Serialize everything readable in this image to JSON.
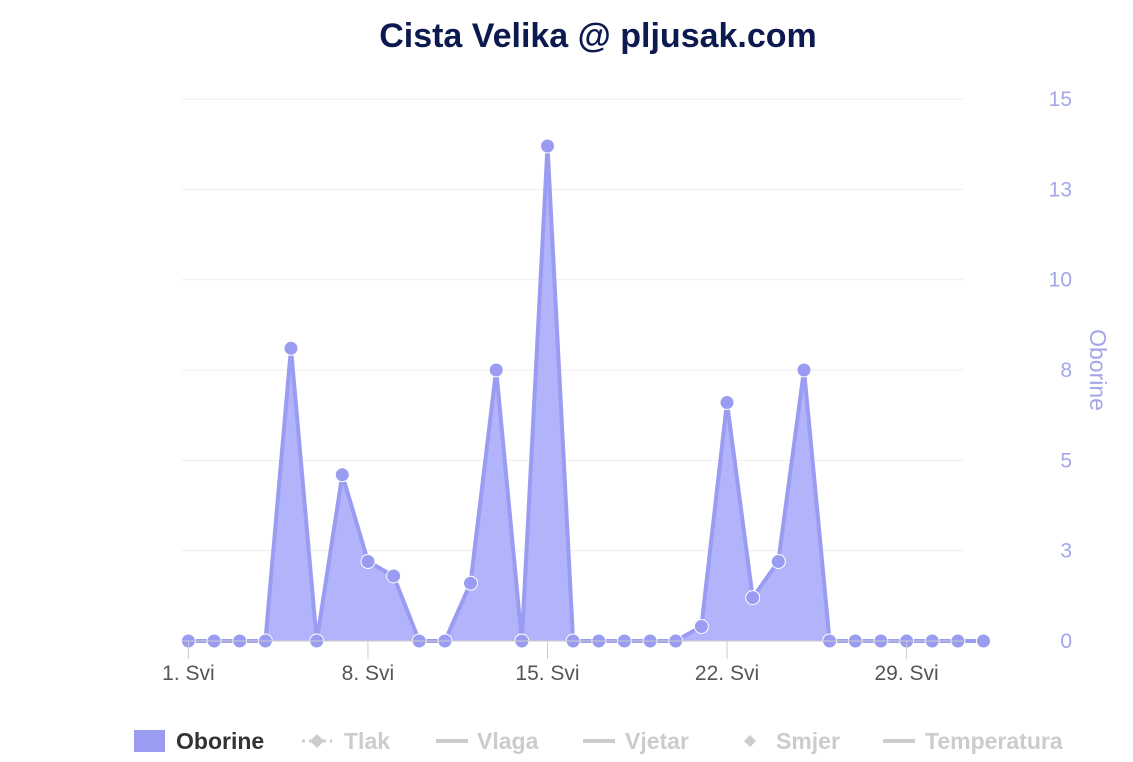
{
  "chart_data": {
    "type": "area",
    "title": "Cista Velika @ pljusak.com",
    "ylabel": "Oborine",
    "ylim": [
      0,
      15
    ],
    "yticks": [
      0,
      2.5,
      5,
      7.5,
      10,
      12.5,
      15
    ],
    "ytick_labels": [
      "0",
      "3",
      "5",
      "8",
      "10",
      "13",
      "15"
    ],
    "xticks": [
      1,
      8,
      15,
      22,
      29
    ],
    "xtick_labels": [
      "1. Svi",
      "8. Svi",
      "15. Svi",
      "22. Svi",
      "29. Svi"
    ],
    "xlim": [
      0.75,
      31.2
    ],
    "grid": true,
    "legend_position": "bottom",
    "colors": {
      "series": "#9a9cf2",
      "fill": "#b1b3fb",
      "axis": "#a4a6ea",
      "grid": "#eeeeee",
      "title": "#0c1a4f"
    },
    "series": [
      {
        "name": "Oborine",
        "x": [
          1,
          2,
          3,
          4,
          5,
          6,
          7,
          8,
          9,
          10,
          11,
          12,
          13,
          14,
          15,
          16,
          17,
          18,
          19,
          20,
          21,
          22,
          23,
          24,
          25,
          26,
          27,
          28,
          29,
          30,
          31,
          32
        ],
        "values": [
          0,
          0,
          0,
          0,
          8.1,
          0,
          4.6,
          2.2,
          1.8,
          0,
          0,
          1.6,
          7.5,
          0,
          13.7,
          0,
          0,
          0,
          0,
          0,
          0.4,
          6.6,
          1.2,
          2.2,
          7.5,
          0,
          0,
          0,
          0,
          0,
          0,
          0
        ]
      }
    ],
    "legend": [
      {
        "name": "Oborine",
        "active": true,
        "marker": "area"
      },
      {
        "name": "Tlak",
        "active": false,
        "marker": "line-diamond"
      },
      {
        "name": "Vlaga",
        "active": false,
        "marker": "line"
      },
      {
        "name": "Vjetar",
        "active": false,
        "marker": "line"
      },
      {
        "name": "Smjer",
        "active": false,
        "marker": "diamond"
      },
      {
        "name": "Temperatura",
        "active": false,
        "marker": "line"
      }
    ]
  }
}
